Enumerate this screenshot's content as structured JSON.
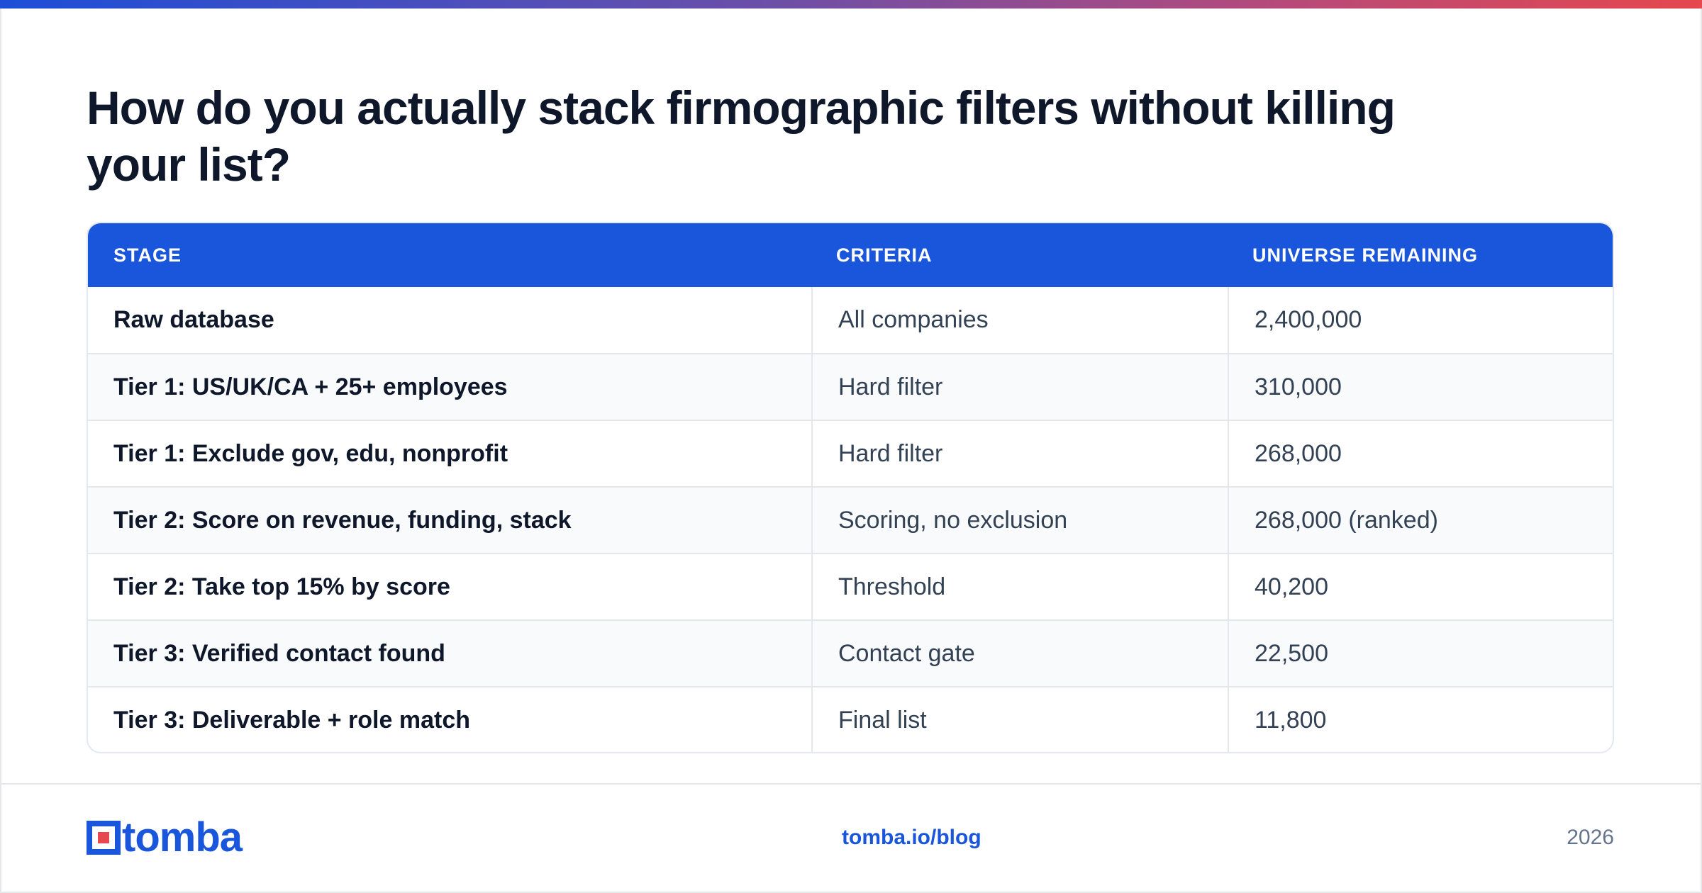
{
  "title": "How do you actually stack firmographic filters without killing your list?",
  "colors": {
    "accent_blue": "#1a56db",
    "accent_red": "#e5484d",
    "title_text": "#0f172a",
    "row_alt_bg": "#f8fafc"
  },
  "table": {
    "headers": {
      "stage": "STAGE",
      "criteria": "CRITERIA",
      "remaining": "UNIVERSE REMAINING"
    },
    "rows": [
      {
        "stage": "Raw database",
        "criteria": "All companies",
        "remaining": "2,400,000"
      },
      {
        "stage": "Tier 1: US/UK/CA + 25+ employees",
        "criteria": "Hard filter",
        "remaining": "310,000"
      },
      {
        "stage": "Tier 1: Exclude gov, edu, nonprofit",
        "criteria": "Hard filter",
        "remaining": "268,000"
      },
      {
        "stage": "Tier 2: Score on revenue, funding, stack",
        "criteria": "Scoring, no exclusion",
        "remaining": "268,000 (ranked)"
      },
      {
        "stage": "Tier 2: Take top 15% by score",
        "criteria": "Threshold",
        "remaining": "40,200"
      },
      {
        "stage": "Tier 3: Verified contact found",
        "criteria": "Contact gate",
        "remaining": "22,500"
      },
      {
        "stage": "Tier 3: Deliverable + role match",
        "criteria": "Final list",
        "remaining": "11,800"
      }
    ]
  },
  "footer": {
    "logo_text": "tomba",
    "logo_icon": "tomba-logo-icon",
    "url": "tomba.io/blog",
    "year": "2026"
  }
}
